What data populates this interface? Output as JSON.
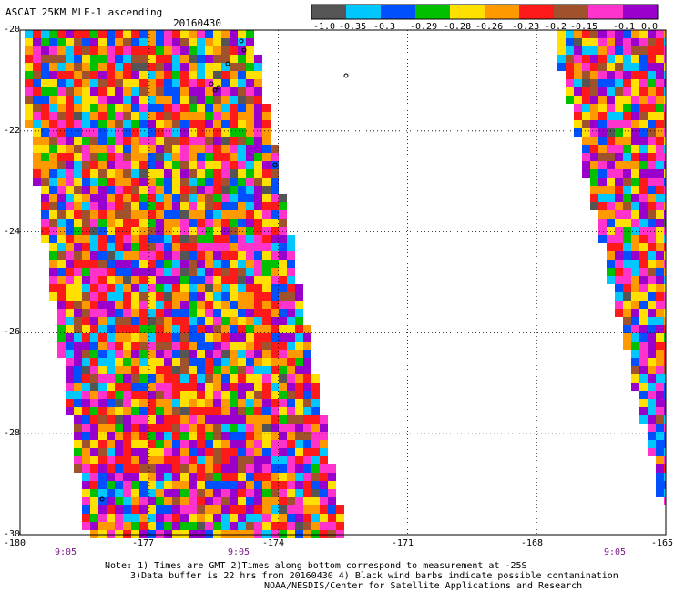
{
  "header": {
    "title": "ASCAT 25KM MLE-1 ascending",
    "date": "20160430"
  },
  "colorbar": {
    "labels": [
      "-1.0",
      "-0.35",
      "-0.3",
      "-0.29",
      "-0.28",
      "-0.26",
      "-0.23",
      "-0.2",
      "-0.15",
      "-0.1",
      "0.0"
    ],
    "colors": [
      "#555555",
      "#00c8ff",
      "#0050ff",
      "#00c000",
      "#ffe000",
      "#ff9900",
      "#ff1a1a",
      "#a0522d",
      "#ff33cc",
      "#9900cc"
    ]
  },
  "map": {
    "x_ticks": [
      "-180",
      "-177",
      "-174",
      "-171",
      "-168",
      "-165"
    ],
    "y_ticks": [
      "-20",
      "-22",
      "-24",
      "-26",
      "-28",
      "-30"
    ],
    "times": [
      "9:05",
      "9:05",
      "9:05"
    ]
  },
  "notes": {
    "line1": "Note: 1) Times are GMT 2)Times along bottom correspond to measurement at -25S",
    "line2": "3)Data buffer is 22 hrs from 20160430 4) Black wind barbs indicate possible contamination",
    "line3": "NOAA/NESDIS/Center for Satellite Applications and Research"
  }
}
